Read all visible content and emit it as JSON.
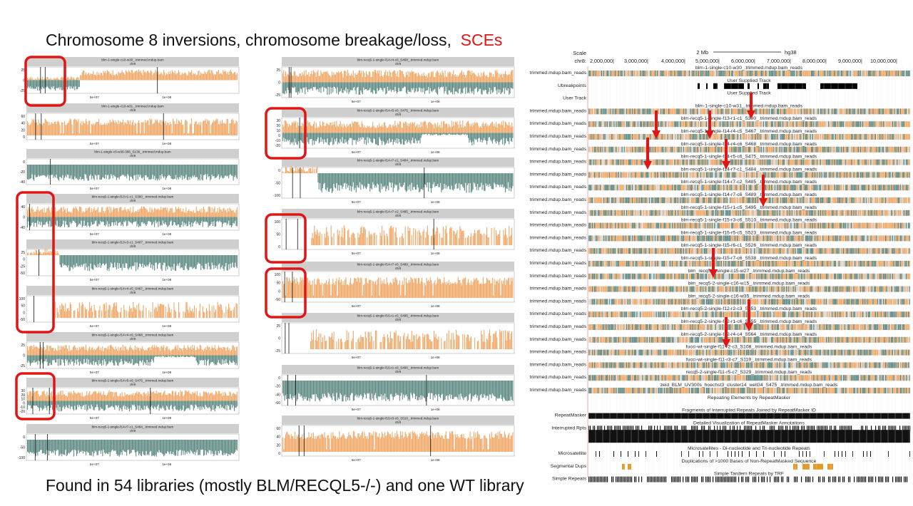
{
  "slide": {
    "title_main": "Chromosome 8 inversions, chromosome breakage/loss,",
    "title_highlight": "SCEs",
    "footer": "Found in 54 libraries (mostly BLM/RECQL5-/-) and one WT library"
  },
  "colors": {
    "gain": "#f0a868",
    "loss": "#5f8a84",
    "highlight": "#e01616",
    "header": "#cfcfcf"
  },
  "panel_common": {
    "chromosome": "chr8",
    "x_ticks": [
      "5e+07",
      "1e+08"
    ]
  },
  "panels_left": [
    {
      "title": "blm-1-single-c10-w30_.trimmed.mdup.bam",
      "y_ticks": [
        "25",
        "0",
        "-25"
      ],
      "highlight": true,
      "profile": "breaks_early"
    },
    {
      "title": "blm-1-single-c10-w31_.trimmed.mdup.bam",
      "y_ticks": [
        "60",
        "40",
        "20",
        "0"
      ],
      "highlight": false,
      "profile": "gain"
    },
    {
      "title": "blm-1-single-c5-w36-386_S136_.trimmed.mdup.bam",
      "y_ticks": [
        "0",
        "-20",
        "-40"
      ],
      "highlight": false,
      "profile": "loss"
    },
    {
      "title": "blm-recq5-1-single-f13-r1-c1_S390_.trimmed.mdup.bam",
      "y_ticks": [
        "40",
        "0",
        "-40"
      ],
      "highlight": true,
      "profile": "split"
    },
    {
      "title": "blm-recq5-1-single-f13-r3-c1_S407_.trimmed.mdup.bam",
      "y_ticks": [
        "25",
        "0",
        "-25",
        "-50"
      ],
      "highlight": true,
      "profile": "loss_hi"
    },
    {
      "title": "blm-recq5-1-single-f14-r4-c5_S467_.trimmed.mdup.bam",
      "y_ticks": [
        "100",
        "50",
        "0",
        "-50"
      ],
      "highlight": true,
      "profile": "gain_sparse"
    },
    {
      "title": "blm-recq5-1-single-f14-r4-c6_S468_.trimmed.mdup.bam",
      "y_ticks": [
        "25",
        "0",
        "-25"
      ],
      "highlight": false,
      "profile": "split"
    },
    {
      "title": "blm-recq5-1-single-f14-r5-c6_S475_.trimmed.mdup.bam",
      "y_ticks": [
        "30",
        "20",
        "10",
        "0",
        "-10",
        "-20"
      ],
      "highlight": true,
      "profile": "split"
    },
    {
      "title": "blm-recq5-1-single-f14-r7-c1_S484_.trimmed.mdup.bam",
      "y_ticks": [
        "0",
        "-50",
        "-100"
      ],
      "highlight": false,
      "profile": "loss"
    }
  ],
  "panels_mid": [
    {
      "title": "blm-recq5-1-single-f14-r4-c6_S468_.trimmed.mdup.bam",
      "y_ticks": [
        "25",
        "0",
        "-25"
      ],
      "highlight": false,
      "profile": "split"
    },
    {
      "title": "blm-recq5-1-single-f14-r5-c6_S475_.trimmed.mdup.bam",
      "y_ticks": [
        "30",
        "20",
        "10",
        "0",
        "-10",
        "-20"
      ],
      "highlight": true,
      "profile": "split"
    },
    {
      "title": "blm-recq5-1-single-f14-r7-c1_S484_.trimmed.mdup.bam",
      "y_ticks": [
        "0",
        "-50",
        "-100"
      ],
      "highlight": false,
      "profile": "loss_hi"
    },
    {
      "title": "blm-recq5-1-single-f14-r7-c2_S485_.trimmed.mdup.bam",
      "y_ticks": [
        "100",
        "50",
        "0"
      ],
      "highlight": true,
      "profile": "gain_sparse"
    },
    {
      "title": "blm-recq5-1-single-f14-r7-c6_S489_.trimmed.mdup.bam",
      "y_ticks": [
        "100",
        "50",
        "0",
        "-50"
      ],
      "highlight": true,
      "profile": "gain"
    },
    {
      "title": "blm-recq5-1-single-f15-r1-c5_S495_.trimmed.mdup.bam",
      "y_ticks": [
        "25",
        "0",
        "-25"
      ],
      "highlight": false,
      "profile": "gain_sparse"
    },
    {
      "title": "blm-recq5-1-single-f15-r1-c6_S496_.trimmed.mdup.bam",
      "y_ticks": [
        "0",
        "-20",
        "-40",
        "-60"
      ],
      "highlight": false,
      "profile": "loss"
    },
    {
      "title": "blm-recq5-1-single-f15-r3-c6_S510_.trimmed.mdup.bam",
      "y_ticks": [
        "60",
        "40",
        "20",
        "0"
      ],
      "highlight": false,
      "profile": "gain"
    }
  ],
  "ucsc": {
    "scale_label": "Scale",
    "chrom_label": "chr8:",
    "scale_bar_label": "2 Mb",
    "assembly": "hg38",
    "positions": [
      "2,000,000|",
      "3,000,000|",
      "4,000,000|",
      "5,000,000|",
      "6,000,000|",
      "7,000,000|",
      "8,000,000|",
      "9,000,000|",
      "10,000,000|"
    ],
    "tracks": [
      {
        "left": "trimmed.mdup.bam_reads",
        "center": "blm-1-single-c10-w30_.trimmed.mdup.bam_reads",
        "kind": "reads"
      },
      {
        "left": "Ubreakpoints",
        "center": "User Supplied Track",
        "kind": "ubreak"
      },
      {
        "left": "User Track",
        "center": "User Supplied Track",
        "kind": "blank"
      },
      {
        "left": "trimmed.mdup.bam_reads",
        "center": "blm-1-single-c10-w31_.trimmed.mdup.bam_reads",
        "kind": "reads"
      },
      {
        "left": "trimmed.mdup.bam_reads",
        "center": "blm-recq5-1-single-f13-r1-c1_S390_.trimmed.mdup.bam_reads",
        "kind": "reads"
      },
      {
        "left": "trimmed.mdup.bam_reads",
        "center": "blm-recq5-1-single-f14-r4-c5_S467_.trimmed.mdup.bam_reads",
        "kind": "reads"
      },
      {
        "left": "trimmed.mdup.bam_reads",
        "center": "blm-recq5-1-single-f14-r4-c6_S468_.trimmed.mdup.bam_reads",
        "kind": "reads"
      },
      {
        "left": "trimmed.mdup.bam_reads",
        "center": "blm-recq5-1-single-f14-r5-c6_S475_.trimmed.mdup.bam_reads",
        "kind": "reads"
      },
      {
        "left": "trimmed.mdup.bam_reads",
        "center": "blm-recq5-1-single-f14-r7-c1_S484_.trimmed.mdup.bam_reads",
        "kind": "reads"
      },
      {
        "left": "trimmed.mdup.bam_reads",
        "center": "blm-recq5-1-single-f14-r7-c2_S485_.trimmed.mdup.bam_reads",
        "kind": "reads"
      },
      {
        "left": "trimmed.mdup.bam_reads",
        "center": "blm-recq5-1-single-f14-r7-c6_S489_.trimmed.mdup.bam_reads",
        "kind": "reads"
      },
      {
        "left": "trimmed.mdup.bam_reads",
        "center": "blm-recq5-1-single-f15-r1-c5_S495_.trimmed.mdup.bam_reads",
        "kind": "reads"
      },
      {
        "left": "trimmed.mdup.bam_reads",
        "center": "blm-recq5-1-single-f15-r3-c6_S510_.trimmed.mdup.bam_reads",
        "kind": "reads"
      },
      {
        "left": "trimmed.mdup.bam_reads",
        "center": "blm-recq5-1-single-f15-r5-c5_S523_.trimmed.mdup.bam_reads",
        "kind": "reads"
      },
      {
        "left": "trimmed.mdup.bam_reads",
        "center": "blm-recq5-1-single-f15-r6-c1_S526_.trimmed.mdup.bam_reads",
        "kind": "reads"
      },
      {
        "left": "trimmed.mdup.bam_reads",
        "center": "blm-recq5-1-single-f15-r7-c6_S538_.trimmed.mdup.bam_reads",
        "kind": "reads"
      },
      {
        "left": "trimmed.mdup.bam_reads",
        "center": "blm_recq5-2-single-c15-w27_.trimmed.mdup.bam_reads",
        "kind": "reads"
      },
      {
        "left": "trimmed.mdup.bam_reads",
        "center": "blm_recq5-2-single-c16-w15_.trimmed.mdup.bam_reads",
        "kind": "reads"
      },
      {
        "left": "trimmed.mdup.bam_reads",
        "center": "blm_recq5-2-single-c16-w35_.trimmed.mdup.bam_reads",
        "kind": "reads"
      },
      {
        "left": "trimmed.mdup.bam_reads",
        "center": "blm-recq5-2-single-f12-r2-c3_S553_.trimmed.mdup.bam_reads",
        "kind": "reads"
      },
      {
        "left": "trimmed.mdup.bam_reads",
        "center": "blm-recq5-2-single-f12-r1-c6_S555_.trimmed.mdup.bam_reads",
        "kind": "reads"
      },
      {
        "left": "trimmed.mdup.bam_reads",
        "center": "blm-recq5-2-single-f12-r4-c4_S564_.trimmed.mdup.bam_reads",
        "kind": "reads"
      },
      {
        "left": "trimmed.mdup.bam_reads",
        "center": "fucci-wt-single-f11-r2-c3_S108_.trimmed.mdup.bam_reads",
        "kind": "reads"
      },
      {
        "left": "trimmed.mdup.bam_reads",
        "center": "fucci-wt-single-f11-r3-c7_S119_.trimmed.mdup.bam_reads",
        "kind": "reads"
      },
      {
        "left": "trimmed.mdup.bam_reads",
        "center": "recq5-2-single-f11-r5-c7_S329_.trimmed.mdup.bam_reads",
        "kind": "reads"
      },
      {
        "left": "trimmed.mdup.bam_reads",
        "center": "zeid_BLM_UV300s_hoechst3_cluster14_well34_S475_.trimmed.mdup.bam_reads",
        "kind": "reads"
      },
      {
        "left": "",
        "center": "Repeating Elements by RepeatMasker",
        "kind": "blank"
      },
      {
        "left": "RepeatMasker",
        "center": "Fragments of Interrupted Repeats Joined by RepeatMasker ID",
        "kind": "solid"
      },
      {
        "left": "Interrupted Rpts",
        "center": "Detailed Visualization of RepeatMasker Annotations",
        "kind": "dense"
      },
      {
        "left": "",
        "center": "",
        "kind": "solid2"
      },
      {
        "left": "Microsatellite",
        "center": "Microsatellites - Di-nucleotide and Tri-nucleotide Repeats",
        "kind": "sparse"
      },
      {
        "left": "Segmental Dups",
        "center": "Duplications of >1000 Bases of Non-RepeatMasked Sequence",
        "kind": "segdup"
      },
      {
        "left": "Simple Repeats",
        "center": "Simple Tandem Repeats by TRF",
        "kind": "dense"
      }
    ],
    "arrows": [
      {
        "x": 920,
        "y1": 155,
        "y2": 195
      },
      {
        "x": 995,
        "y1": 155,
        "y2": 195
      },
      {
        "x": 1053,
        "y1": 130,
        "y2": 167
      },
      {
        "x": 908,
        "y1": 193,
        "y2": 238
      },
      {
        "x": 1018,
        "y1": 195,
        "y2": 238
      },
      {
        "x": 1070,
        "y1": 245,
        "y2": 290
      },
      {
        "x": 1000,
        "y1": 348,
        "y2": 390
      },
      {
        "x": 1050,
        "y1": 420,
        "y2": 465
      },
      {
        "x": 1018,
        "y1": 445,
        "y2": 488
      }
    ]
  }
}
